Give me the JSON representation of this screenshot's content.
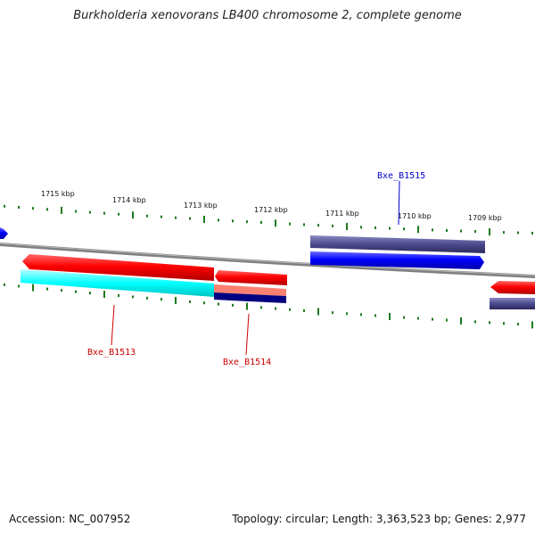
{
  "title": "Burkholderia xenovorans LB400 chromosome 2, complete genome",
  "footer": {
    "accession": "Accession: NC_007952",
    "summary": "Topology: circular; Length: 3,363,523 bp; Genes: 2,977"
  },
  "scale_labels": [
    "1715 kbp",
    "1714 kbp",
    "1713 kbp",
    "1712 kbp",
    "1711 kbp",
    "1710 kbp",
    "1709 kbp"
  ],
  "gene_labels": [
    {
      "text": "Bxe_B1515",
      "color": "#0000cc"
    },
    {
      "text": "Bxe_B1513",
      "color": "#cc0000"
    },
    {
      "text": "Bxe_B1514",
      "color": "#cc0000"
    }
  ],
  "colors": {
    "backbone": "#808080",
    "forward_gene": "#ff0000",
    "reverse_gene": "#0000ff",
    "cds_dark": "#4b4a8c",
    "cds_light": "#00ffff",
    "navy": "#000080",
    "salmon": "#fa8072",
    "tick": "#1e7a1e"
  }
}
